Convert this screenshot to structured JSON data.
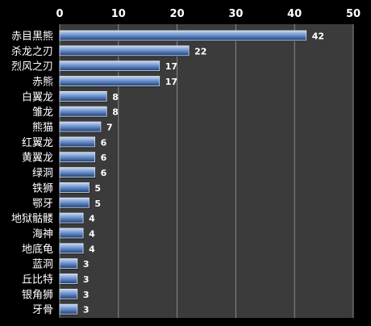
{
  "chart_data": {
    "type": "bar",
    "orientation": "horizontal",
    "title": "",
    "xlabel": "",
    "ylabel": "",
    "categories": [
      "赤目黑熊",
      "杀龙之刃",
      "烈风之刃",
      "赤熊",
      "白翼龙",
      "雏龙",
      "熊猫",
      "红翼龙",
      "黄翼龙",
      "绿洞",
      "铁狮",
      "鄂牙",
      "地狱骷髅",
      "海神",
      "地底龟",
      "蓝洞",
      "丘比特",
      "银角狮",
      "牙骨"
    ],
    "values": [
      42,
      22,
      17,
      17,
      8,
      8,
      7,
      6,
      6,
      6,
      5,
      5,
      4,
      4,
      4,
      3,
      3,
      3,
      3
    ],
    "xlim": [
      0,
      50
    ],
    "xticks": [
      "0",
      "10",
      "20",
      "30",
      "40",
      "50"
    ],
    "xaxis_position": "top",
    "grid": true,
    "legend": "none",
    "colors": {
      "background": "#000000",
      "plot_area": "#3b3b3b",
      "gridline": "#8a8a8a",
      "bar_light": "#c8d8f0",
      "bar_mid": "#6f95cf",
      "bar_dark": "#1e3f7a",
      "text": "#ffffff"
    }
  }
}
